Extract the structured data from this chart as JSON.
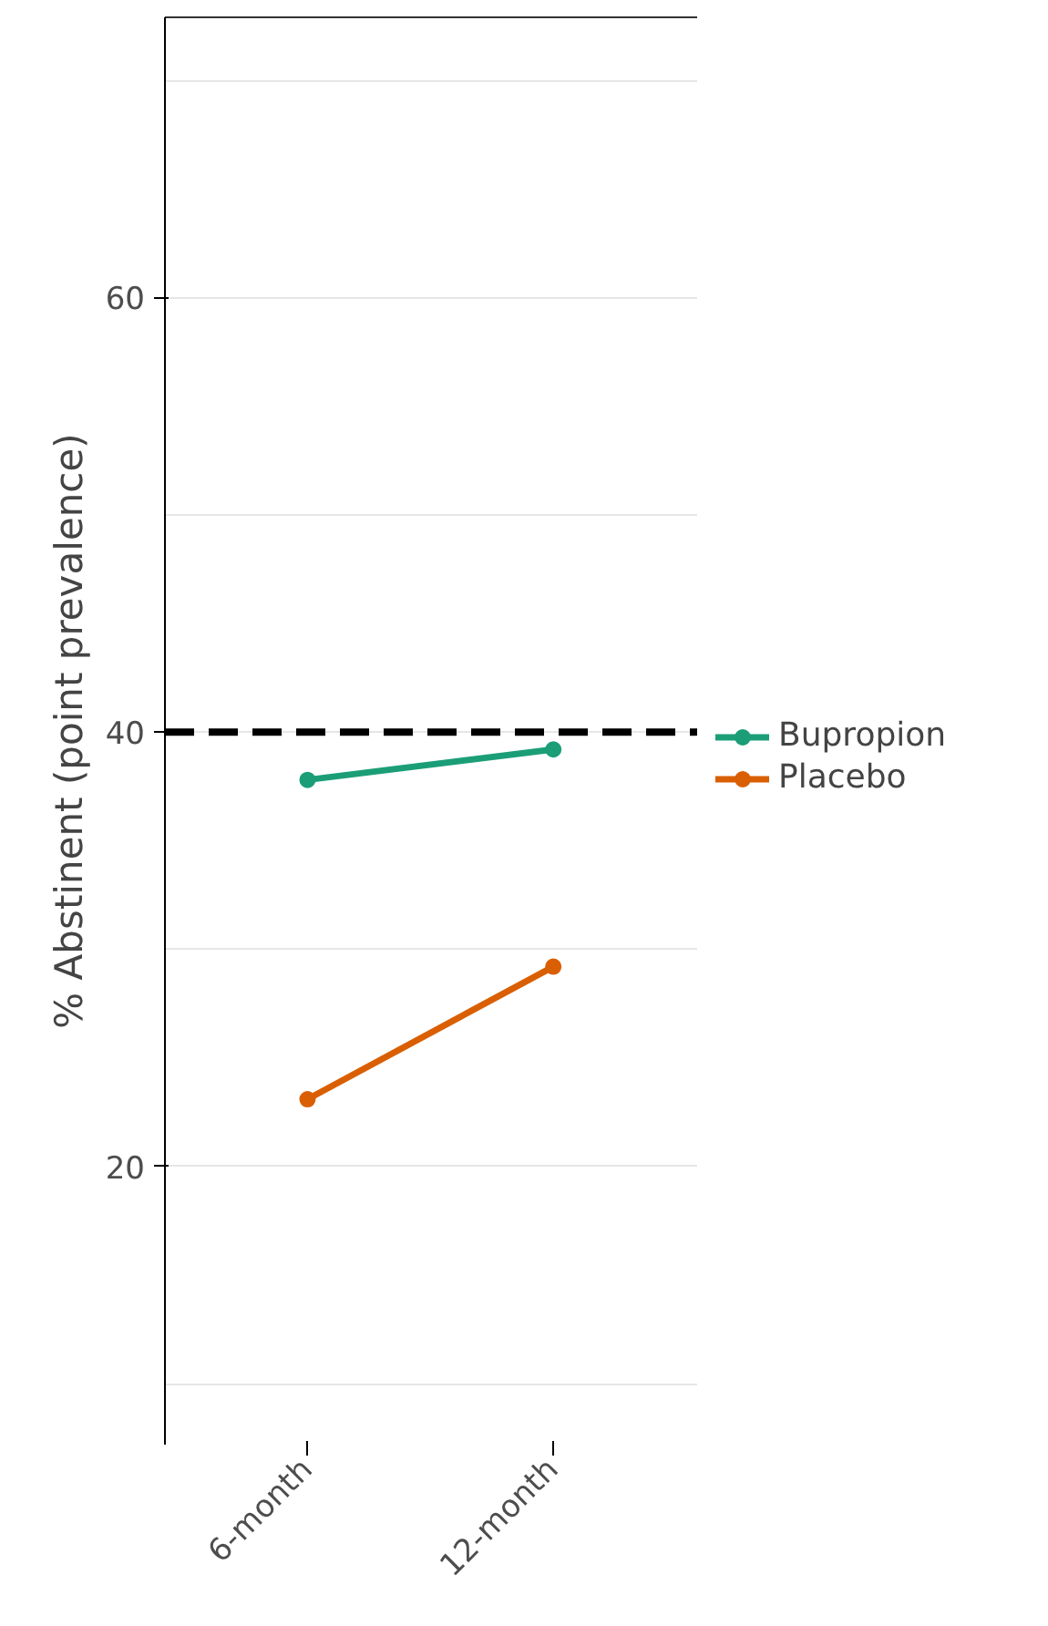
{
  "chart_data": {
    "type": "line",
    "ylabel": "% Abstinent (point prevalence)",
    "categories": [
      "6-month",
      "12-month"
    ],
    "series": [
      {
        "name": "Bupropion",
        "color": "#1b9e77",
        "values": [
          37.8,
          39.2
        ]
      },
      {
        "name": "Placebo",
        "color": "#d95f02",
        "values": [
          23.1,
          29.2
        ]
      }
    ],
    "ylim": [
      7.2,
      72.9
    ],
    "yticks": [
      20,
      40,
      60
    ],
    "ref_lines": [
      {
        "axis": "y",
        "value": 40,
        "color": "#000000",
        "line_style": "dashed"
      }
    ],
    "grid": "y",
    "legend": "right",
    "marker": "circle",
    "line_style": "solid"
  }
}
